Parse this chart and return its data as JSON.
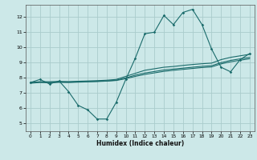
{
  "xlabel": "Humidex (Indice chaleur)",
  "ylabel": "",
  "xlim": [
    -0.5,
    23.5
  ],
  "ylim": [
    4.5,
    12.8
  ],
  "yticks": [
    5,
    6,
    7,
    8,
    9,
    10,
    11,
    12
  ],
  "xticks": [
    0,
    1,
    2,
    3,
    4,
    5,
    6,
    7,
    8,
    9,
    10,
    11,
    12,
    13,
    14,
    15,
    16,
    17,
    18,
    19,
    20,
    21,
    22,
    23
  ],
  "background_color": "#cce8e8",
  "grid_color": "#aacccc",
  "line_color": "#1a6b6b",
  "line1_x": [
    0,
    1,
    2,
    3,
    4,
    5,
    6,
    7,
    8,
    9,
    10,
    11,
    12,
    13,
    14,
    15,
    16,
    17,
    18,
    19,
    20,
    21,
    22,
    23
  ],
  "line1_y": [
    7.7,
    7.9,
    7.6,
    7.8,
    7.1,
    6.2,
    5.9,
    5.3,
    5.3,
    6.4,
    7.9,
    9.3,
    10.9,
    11.0,
    12.1,
    11.5,
    12.3,
    12.5,
    11.5,
    9.9,
    8.7,
    8.4,
    9.2,
    9.6
  ],
  "line2_x": [
    0,
    1,
    2,
    3,
    4,
    5,
    6,
    7,
    8,
    9,
    10,
    11,
    12,
    13,
    14,
    15,
    16,
    17,
    18,
    19,
    20,
    21,
    22,
    23
  ],
  "line2_y": [
    7.7,
    7.75,
    7.75,
    7.77,
    7.76,
    7.78,
    7.8,
    7.82,
    7.85,
    7.9,
    8.1,
    8.3,
    8.5,
    8.6,
    8.7,
    8.75,
    8.82,
    8.88,
    8.93,
    8.97,
    9.2,
    9.35,
    9.45,
    9.55
  ],
  "line3_x": [
    0,
    1,
    2,
    3,
    4,
    5,
    6,
    7,
    8,
    9,
    10,
    11,
    12,
    13,
    14,
    15,
    16,
    17,
    18,
    19,
    20,
    21,
    22,
    23
  ],
  "line3_y": [
    7.68,
    7.72,
    7.7,
    7.73,
    7.72,
    7.74,
    7.76,
    7.78,
    7.8,
    7.85,
    8.0,
    8.18,
    8.32,
    8.42,
    8.52,
    8.58,
    8.64,
    8.7,
    8.76,
    8.8,
    9.0,
    9.15,
    9.25,
    9.35
  ],
  "line4_x": [
    0,
    1,
    2,
    3,
    4,
    5,
    6,
    7,
    8,
    9,
    10,
    11,
    12,
    13,
    14,
    15,
    16,
    17,
    18,
    19,
    20,
    21,
    22,
    23
  ],
  "line4_y": [
    7.65,
    7.7,
    7.68,
    7.71,
    7.7,
    7.72,
    7.74,
    7.76,
    7.79,
    7.83,
    7.95,
    8.1,
    8.23,
    8.33,
    8.43,
    8.5,
    8.56,
    8.62,
    8.68,
    8.72,
    8.92,
    9.06,
    9.16,
    9.26
  ]
}
